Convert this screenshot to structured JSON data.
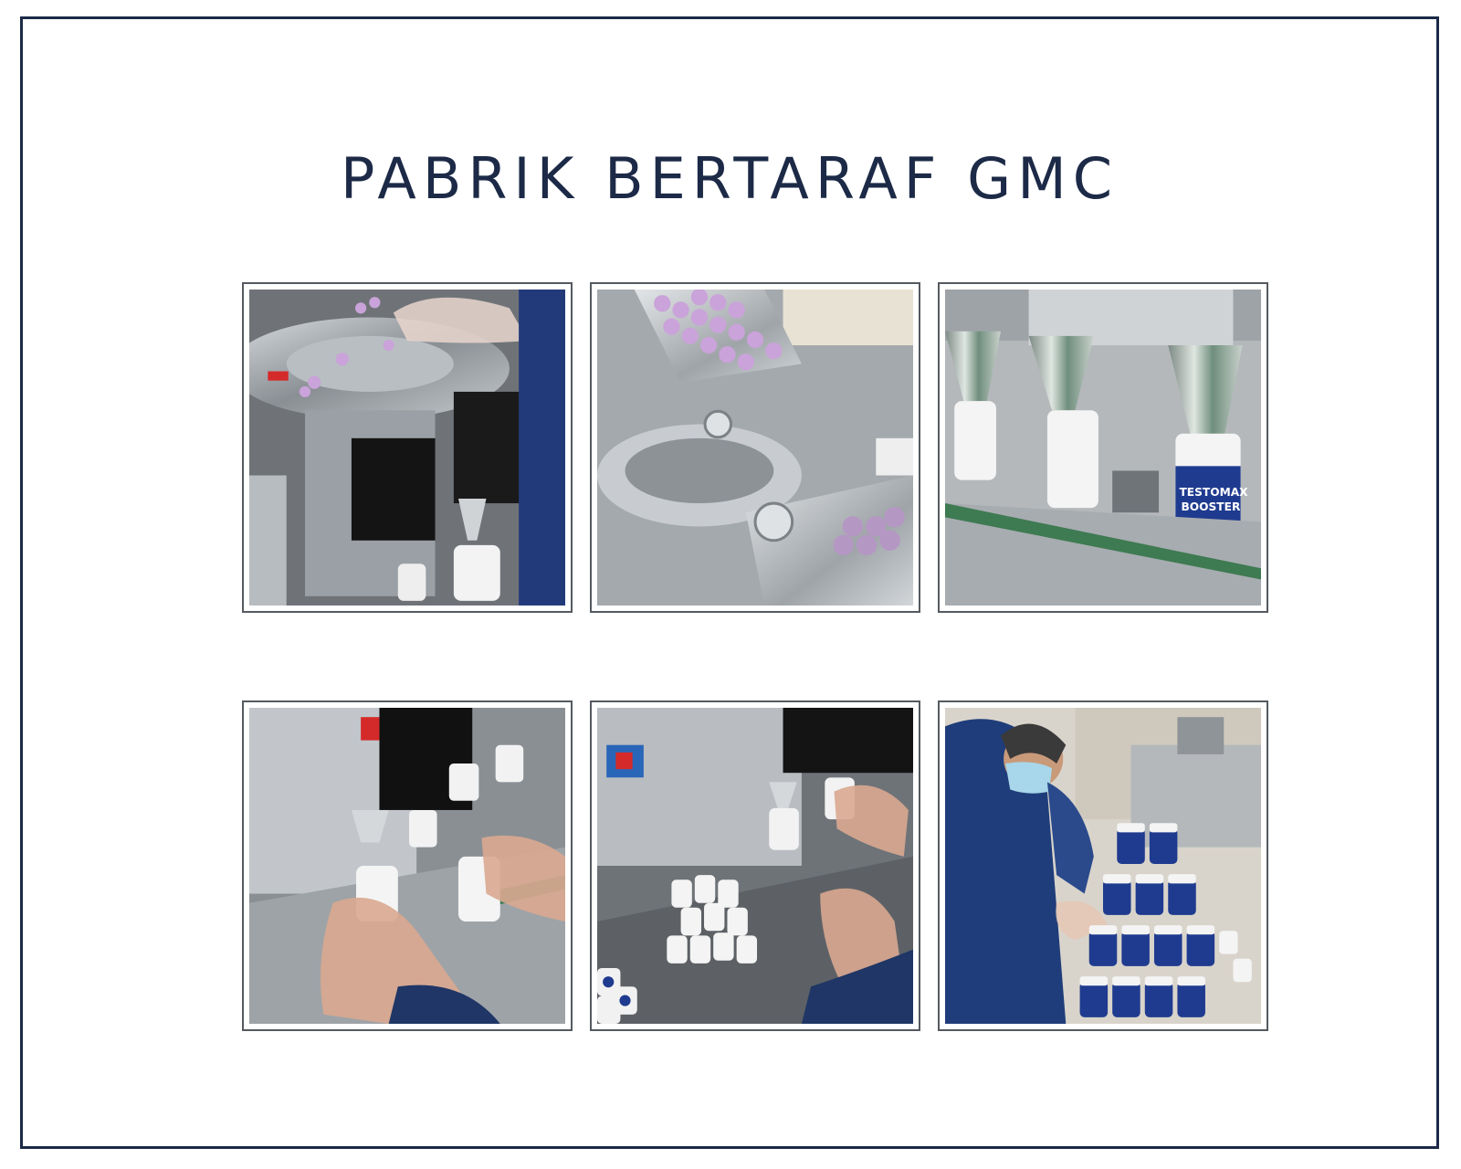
{
  "title": "PABRIK BERTARAF GMC",
  "colors": {
    "title": "#1c2a47",
    "frame_border": "#1c2a47",
    "photo_border": "#555a60",
    "tablet": "#c9a3d9",
    "bottle_label": "#1f3b8f"
  },
  "photos": [
    {
      "subject": "tablet-sorting-plate-photo"
    },
    {
      "subject": "tablet-tray-photo"
    },
    {
      "subject": "bottle-filling-funnels-photo",
      "label_lines": [
        "TESTOMAX",
        "BOOSTER"
      ]
    },
    {
      "subject": "hand-capping-bottles-photo"
    },
    {
      "subject": "bottle-assembly-table-photo"
    },
    {
      "subject": "worker-stacking-bottles-photo"
    }
  ]
}
